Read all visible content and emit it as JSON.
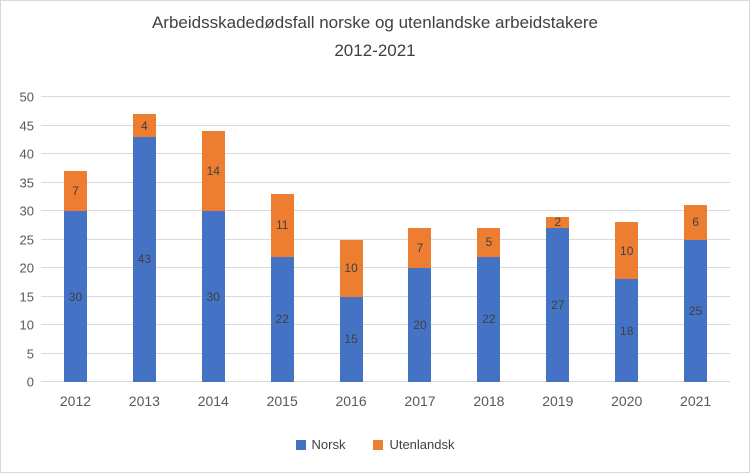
{
  "chart_data": {
    "type": "bar",
    "stacked": true,
    "title": "Arbeidsskadedødsfall norske og utenlandske arbeidstakere",
    "subtitle": "2012-2021",
    "categories": [
      "2012",
      "2013",
      "2014",
      "2015",
      "2016",
      "2017",
      "2018",
      "2019",
      "2020",
      "2021"
    ],
    "series": [
      {
        "name": "Norsk",
        "color": "#4472C4",
        "values": [
          30,
          43,
          30,
          22,
          15,
          20,
          22,
          27,
          18,
          25
        ]
      },
      {
        "name": "Utenlandsk",
        "color": "#ED7D31",
        "values": [
          7,
          4,
          14,
          11,
          10,
          7,
          5,
          2,
          10,
          6
        ]
      }
    ],
    "ylim": [
      0,
      50
    ],
    "ytick_step": 5,
    "grid": true,
    "data_labels": true,
    "legend_position": "bottom",
    "colors": {
      "gridline": "#d9d9d9",
      "axis_text": "#595959",
      "data_label": "#404040",
      "title_text": "#404040",
      "border": "#d9d9d9",
      "background": "#ffffff"
    }
  }
}
